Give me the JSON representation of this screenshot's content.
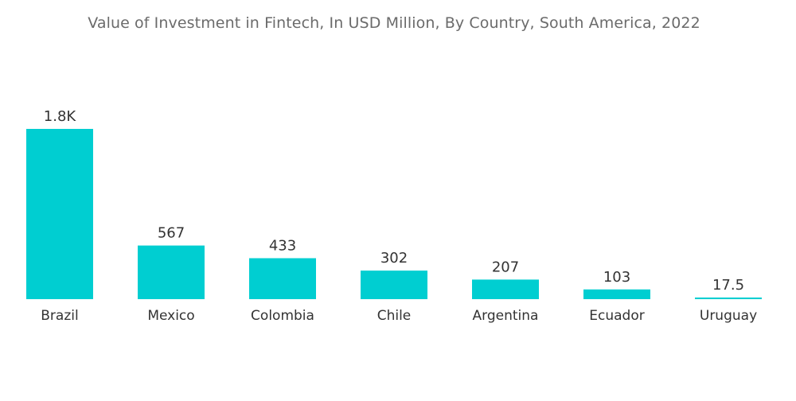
{
  "title": "Value of Investment in Fintech, In USD Million, By Country, South America, 2022",
  "colors": {
    "bar": "#00CED1",
    "title": "#6b6b6b",
    "label": "#333333"
  },
  "chart_data": {
    "type": "bar",
    "title": "Value of Investment in Fintech, In USD Million, By Country, South America, 2022",
    "xlabel": "",
    "ylabel": "",
    "categories": [
      "Brazil",
      "Mexico",
      "Colombia",
      "Chile",
      "Argentina",
      "Ecuador",
      "Uruguay"
    ],
    "values": [
      1800,
      567,
      433,
      302,
      207,
      103,
      17.5
    ],
    "data_labels": [
      "1.8K",
      "567",
      "433",
      "302",
      "207",
      "103",
      "17.5"
    ],
    "ylim": [
      0,
      1800
    ],
    "grid": false,
    "legend": "none"
  }
}
